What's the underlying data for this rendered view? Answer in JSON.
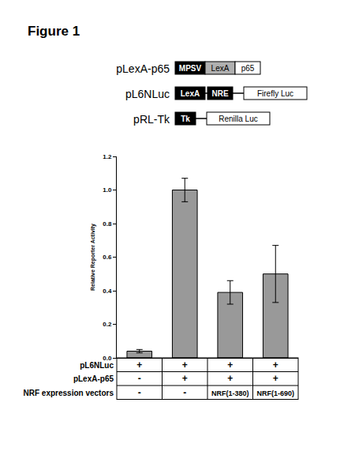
{
  "title": "Figure 1",
  "constructs": [
    {
      "name": "pLexA-p65",
      "parts": [
        {
          "text": "MPSV",
          "fill": "#000000"
        },
        {
          "text": "LexA",
          "fill": "#b0b0b0"
        },
        {
          "text": "p65",
          "fill": "#ffffff"
        }
      ]
    },
    {
      "name": "pL6NLuc",
      "parts": [
        {
          "text": "LexA",
          "fill": "#000000"
        },
        {
          "text": "NRE",
          "fill": "#000000"
        },
        {
          "text": "Firefly Luc",
          "fill": "#ffffff"
        }
      ]
    },
    {
      "name": "pRL-Tk",
      "parts": [
        {
          "text": "Tk",
          "fill": "#000000"
        },
        {
          "text": "Renilla Luc",
          "fill": "#ffffff"
        }
      ]
    }
  ],
  "chart_data": {
    "type": "bar",
    "y_label": "Relative Reporter Activity",
    "categories": [
      null,
      null,
      null,
      null
    ],
    "values": [
      0.04,
      1.0,
      0.39,
      0.5
    ],
    "errors": [
      0.01,
      0.07,
      0.07,
      0.17
    ],
    "color": "#999999",
    "ylim": [
      0,
      1.2
    ],
    "yticks": [
      {
        "value": 0,
        "label": "0.0"
      },
      0.2,
      0.4,
      0.6,
      0.8,
      {
        "value": 1,
        "label": "1.0"
      },
      1.2
    ],
    "grid": false,
    "tick_labels": "y"
  },
  "table": {
    "rows": [
      {
        "label": "pL6NLuc",
        "cells": [
          "+",
          "+",
          "+",
          "+"
        ]
      },
      {
        "label": "pLexA-p65",
        "cells": [
          "-",
          "+",
          "+",
          "+"
        ]
      },
      {
        "label": "NRF expression vectors",
        "cells": [
          "-",
          "-",
          "NRF(1-380)",
          "NRF(1-690)"
        ]
      }
    ]
  }
}
